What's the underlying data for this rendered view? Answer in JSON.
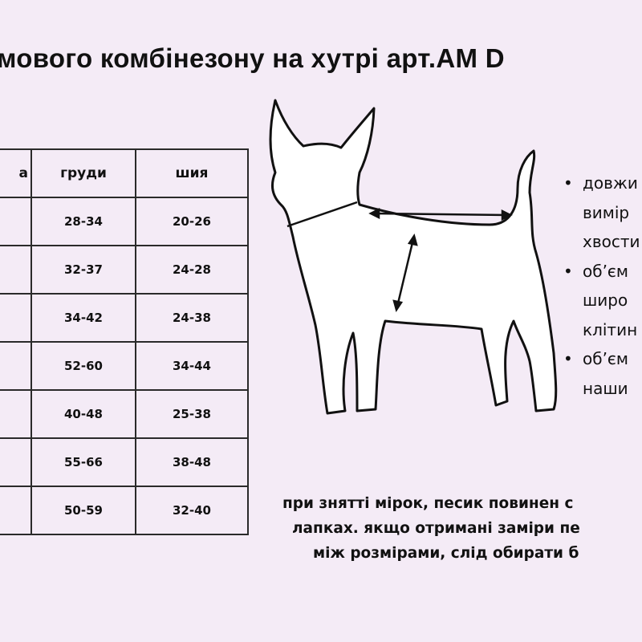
{
  "title": "мового комбінезону на хутрі арт.АМ D",
  "table": {
    "headers": [
      "а",
      "груди",
      "шия"
    ],
    "rows": [
      [
        "",
        "28-34",
        "20-26"
      ],
      [
        "",
        "32-37",
        "24-28"
      ],
      [
        "",
        "34-42",
        "24-38"
      ],
      [
        "",
        "52-60",
        "34-44"
      ],
      [
        "",
        "40-48",
        "25-38"
      ],
      [
        "",
        "55-66",
        "38-48"
      ],
      [
        "",
        "50-59",
        "32-40"
      ]
    ]
  },
  "bullets": [
    [
      "довжи",
      "вимір",
      "хвости"
    ],
    [
      "об’єм",
      "широ",
      "клітин"
    ],
    [
      "об’єм",
      "наши"
    ]
  ],
  "note": [
    "при знятті мірок, песик повинен с",
    "лапках. якщо отримані заміри пе",
    "між розмірами, слід обирати б"
  ],
  "colors": {
    "background": "#f4ebf6",
    "text": "#111111",
    "dog_fill": "#ffffff"
  }
}
